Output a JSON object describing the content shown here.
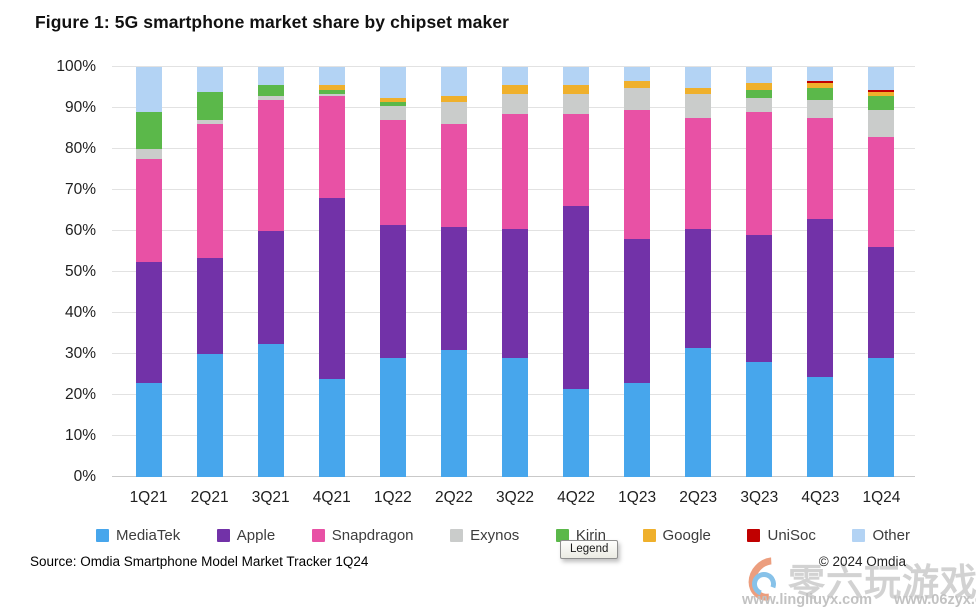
{
  "title": "Figure 1: 5G smartphone market share by chipset maker",
  "source": "Source: Omdia Smartphone Model Market Tracker 1Q24",
  "copyright": "© 2024 Omdia",
  "tooltip": "Legend",
  "watermark": {
    "site_name": "零六玩游戏",
    "url_left": "www.lingliuyx.com",
    "url_right": "www.06zyx.com"
  },
  "chart_data": {
    "type": "bar",
    "stacked": true,
    "title": "Figure 1: 5G smartphone market share by chipset maker",
    "xlabel": "",
    "ylabel": "",
    "ylim": [
      0,
      100
    ],
    "ytick_step": 10,
    "ytick_format": "percent",
    "grid": true,
    "legend_position": "bottom",
    "categories": [
      "1Q21",
      "2Q21",
      "3Q21",
      "4Q21",
      "1Q22",
      "2Q22",
      "3Q22",
      "4Q22",
      "1Q23",
      "2Q23",
      "3Q23",
      "4Q23",
      "1Q24"
    ],
    "yticks": [
      "0%",
      "10%",
      "20%",
      "30%",
      "40%",
      "50%",
      "60%",
      "70%",
      "80%",
      "90%",
      "100%"
    ],
    "series": [
      {
        "name": "MediaTek",
        "color": "#47A6EC",
        "values": [
          23,
          30,
          32.5,
          24,
          29,
          31,
          29,
          21.5,
          23,
          31.5,
          28,
          24.5,
          29
        ]
      },
      {
        "name": "Apple",
        "color": "#7232A8",
        "values": [
          29.5,
          23.5,
          27.5,
          44,
          32.5,
          30,
          31.5,
          44.5,
          35,
          29,
          31,
          38.5,
          27
        ]
      },
      {
        "name": "Snapdragon",
        "color": "#E851A5",
        "values": [
          25,
          32.5,
          32,
          25,
          25.5,
          25,
          28,
          22.5,
          31.5,
          27,
          30,
          24.5,
          27
        ]
      },
      {
        "name": "Exynos",
        "color": "#CACCCB",
        "values": [
          2.5,
          1,
          1,
          0.5,
          3.5,
          5.5,
          5,
          5,
          5.5,
          6,
          3.5,
          4.5,
          6.5
        ]
      },
      {
        "name": "Kirin",
        "color": "#5BB84A",
        "values": [
          9,
          7,
          2.5,
          1,
          1,
          0,
          0,
          0,
          0,
          0,
          2,
          3,
          3.5
        ]
      },
      {
        "name": "Google",
        "color": "#EFB02C",
        "values": [
          0,
          0,
          0,
          1,
          1,
          1.5,
          2,
          2,
          1.5,
          1.5,
          1.5,
          1,
          1
        ]
      },
      {
        "name": "UniSoc",
        "color": "#C00000",
        "values": [
          0,
          0,
          0,
          0,
          0,
          0,
          0,
          0,
          0,
          0,
          0,
          0.5,
          0.5
        ]
      },
      {
        "name": "Other",
        "color": "#B3D3F4",
        "values": [
          11,
          6,
          4.5,
          4.5,
          7.5,
          7,
          4.5,
          4.5,
          3.5,
          5,
          4,
          3.5,
          5.5
        ]
      }
    ]
  }
}
